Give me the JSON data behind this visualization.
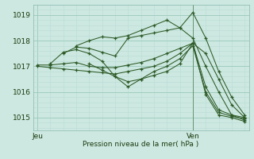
{
  "xlabel": "Pression niveau de la mer( hPa )",
  "bg_color": "#cde8e0",
  "grid_major_color": "#9ac8bc",
  "grid_minor_color": "#b8ddd6",
  "line_color": "#2d5a27",
  "ylim": [
    1014.5,
    1019.4
  ],
  "xlim": [
    -1,
    49
  ],
  "yticks": [
    1015,
    1016,
    1017,
    1018,
    1019
  ],
  "xtick_labels": [
    "Jeu",
    "Ven"
  ],
  "xtick_positions": [
    0,
    36
  ],
  "day_line_x": 36,
  "series": [
    [
      0,
      1017.05,
      3,
      1017.05,
      6,
      1017.1,
      9,
      1017.15,
      12,
      1017.0,
      15,
      1016.95,
      18,
      1016.95,
      21,
      1017.05,
      24,
      1017.15,
      27,
      1017.3,
      30,
      1017.5,
      33,
      1017.7,
      36,
      1017.9,
      39,
      1017.5,
      42,
      1016.5,
      45,
      1015.5,
      48,
      1015.0
    ],
    [
      0,
      1017.0,
      3,
      1016.95,
      6,
      1016.9,
      9,
      1016.85,
      12,
      1016.8,
      15,
      1016.75,
      18,
      1016.7,
      21,
      1016.8,
      24,
      1016.9,
      27,
      1017.0,
      30,
      1017.2,
      33,
      1017.5,
      36,
      1017.9,
      39,
      1016.2,
      42,
      1015.3,
      45,
      1015.1,
      48,
      1014.9
    ],
    [
      3,
      1017.1,
      6,
      1017.55,
      9,
      1017.65,
      12,
      1017.5,
      15,
      1017.2,
      18,
      1016.6,
      21,
      1016.2,
      24,
      1016.5,
      27,
      1016.8,
      30,
      1017.0,
      33,
      1017.3,
      36,
      1017.8,
      39,
      1016.0,
      42,
      1015.2,
      45,
      1015.05,
      48,
      1014.95
    ],
    [
      6,
      1017.5,
      9,
      1017.75,
      12,
      1017.7,
      15,
      1017.55,
      18,
      1017.4,
      21,
      1018.1,
      24,
      1018.2,
      27,
      1018.3,
      30,
      1018.4,
      33,
      1018.5,
      36,
      1018.1,
      39,
      1017.0,
      42,
      1016.0,
      45,
      1015.1,
      48,
      1015.0
    ],
    [
      9,
      1017.8,
      12,
      1018.0,
      15,
      1018.15,
      18,
      1018.1,
      21,
      1018.2,
      24,
      1018.4,
      27,
      1018.6,
      30,
      1018.8,
      33,
      1018.5,
      36,
      1019.1,
      39,
      1018.1,
      42,
      1016.8,
      45,
      1015.8,
      48,
      1015.1
    ],
    [
      12,
      1017.1,
      15,
      1016.85,
      18,
      1016.6,
      21,
      1016.4,
      24,
      1016.5,
      27,
      1016.65,
      30,
      1016.8,
      33,
      1017.1,
      36,
      1017.9,
      39,
      1015.9,
      42,
      1015.1,
      45,
      1015.0,
      48,
      1014.85
    ]
  ]
}
